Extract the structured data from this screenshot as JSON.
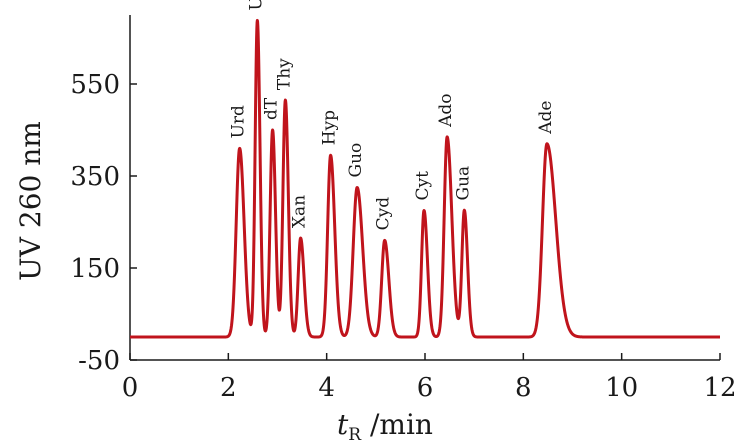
{
  "chart_data": {
    "type": "line",
    "title": "",
    "xlabel": "t_R /min",
    "xlabel_main": "t",
    "xlabel_sub": "R",
    "xlabel_unit": " /min",
    "ylabel": "UV 260 nm",
    "xlim": [
      0,
      12
    ],
    "ylim": [
      -50,
      700
    ],
    "x_ticks": [
      0,
      2,
      4,
      6,
      8,
      10,
      12
    ],
    "x_tick_labels": [
      "0",
      "2",
      "4",
      "6",
      "8",
      "10",
      "12"
    ],
    "y_ticks": [
      -50,
      150,
      350,
      550
    ],
    "y_tick_labels": [
      "-50",
      "150",
      "350",
      "550"
    ],
    "grid": false,
    "legend": "none",
    "baseline": 0,
    "series": [
      {
        "color": "#c0141c",
        "peaks": [
          {
            "label": "Urd",
            "x": 2.23,
            "height": 410,
            "sigma": 0.07,
            "tail": 1.3
          },
          {
            "label": "Ura",
            "x": 2.59,
            "height": 688,
            "sigma": 0.045,
            "tail": 1.2
          },
          {
            "label": "dT",
            "x": 2.9,
            "height": 450,
            "sigma": 0.05,
            "tail": 1.2
          },
          {
            "label": "Thy",
            "x": 3.16,
            "height": 515,
            "sigma": 0.05,
            "tail": 1.2
          },
          {
            "label": "Xan",
            "x": 3.47,
            "height": 215,
            "sigma": 0.05,
            "tail": 1.4
          },
          {
            "label": "Hyp",
            "x": 4.08,
            "height": 395,
            "sigma": 0.06,
            "tail": 1.4
          },
          {
            "label": "Guo",
            "x": 4.62,
            "height": 325,
            "sigma": 0.08,
            "tail": 1.4
          },
          {
            "label": "Cyd",
            "x": 5.18,
            "height": 210,
            "sigma": 0.06,
            "tail": 1.4
          },
          {
            "label": "Cyt",
            "x": 5.98,
            "height": 275,
            "sigma": 0.05,
            "tail": 1.4
          },
          {
            "label": "Ado",
            "x": 6.45,
            "height": 435,
            "sigma": 0.06,
            "tail": 1.6
          },
          {
            "label": "Gua",
            "x": 6.8,
            "height": 275,
            "sigma": 0.05,
            "tail": 1.3
          },
          {
            "label": "Ade",
            "x": 8.48,
            "height": 420,
            "sigma": 0.09,
            "tail": 2.0
          }
        ]
      }
    ]
  }
}
